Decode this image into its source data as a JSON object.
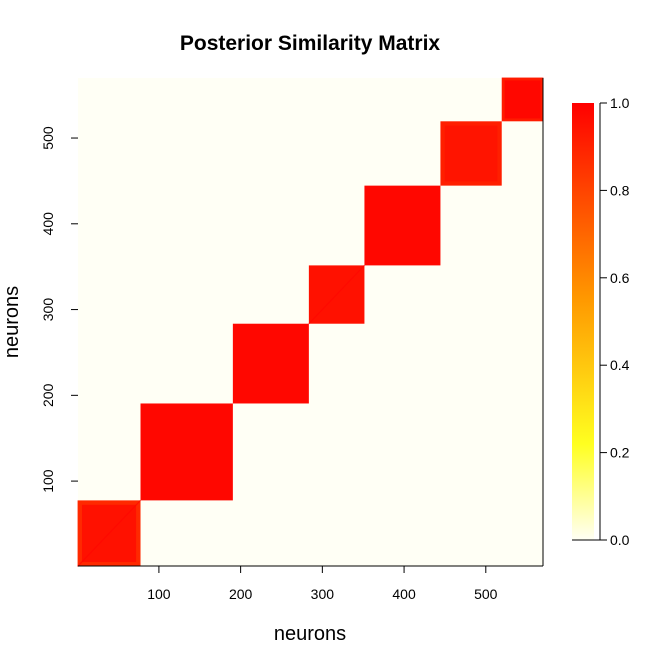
{
  "chart_data": {
    "type": "heatmap",
    "title": "Posterior Similarity Matrix",
    "xlabel": "neurons",
    "ylabel": "neurons",
    "xlim": [
      1,
      570
    ],
    "ylim": [
      1,
      570
    ],
    "x_ticks": [
      100,
      200,
      300,
      400,
      500
    ],
    "y_ticks": [
      100,
      200,
      300,
      400,
      500
    ],
    "background_value": 0.0,
    "blocks": [
      {
        "start": 1,
        "end": 77,
        "value": 0.95,
        "edge_value": 0.88,
        "diagonal_value": 0.98
      },
      {
        "start": 78,
        "end": 190,
        "value": 0.98
      },
      {
        "start": 191,
        "end": 283,
        "value": 0.98
      },
      {
        "start": 284,
        "end": 351,
        "value": 0.95,
        "diagonal_value": 0.98
      },
      {
        "start": 352,
        "end": 444,
        "value": 0.98
      },
      {
        "start": 445,
        "end": 519,
        "value": 0.94,
        "edge_value": 0.91
      },
      {
        "start": 520,
        "end": 570,
        "value": 0.98,
        "edge_value": 0.92
      }
    ],
    "colorbar": {
      "min": 0.0,
      "max": 1.0,
      "ticks": [
        "0.0",
        "0.2",
        "0.4",
        "0.6",
        "0.8",
        "1.0"
      ],
      "colors": [
        "#FFFFF5",
        "#FFFF00",
        "#FF9900",
        "#FF0000"
      ],
      "legend_position": "right"
    }
  }
}
